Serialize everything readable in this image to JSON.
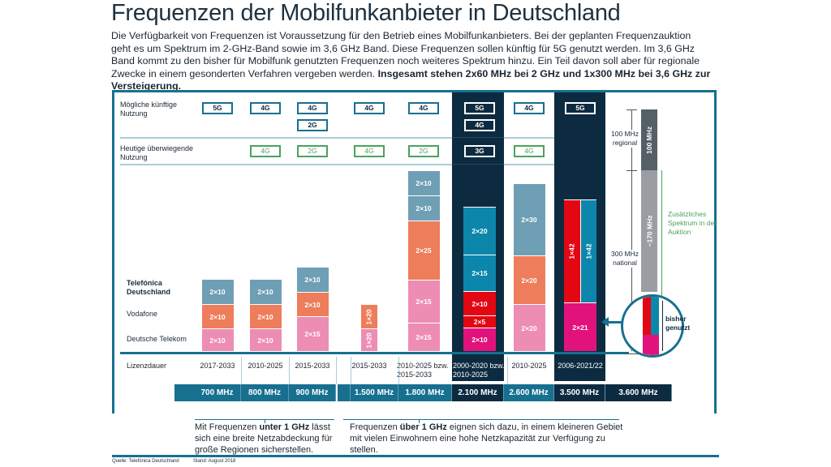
{
  "title": "Frequenzen der Mobilfunkanbieter in Deutschland",
  "intro": {
    "text": "Die Verfügbarkeit von Frequenzen ist Voraussetzung für den Betrieb eines Mobilfunkanbieters. Bei der geplanten Frequenzauktion geht es um Spektrum im 2-GHz-Band sowie im 3,6 GHz Band. Diese Frequenzen sollen künftig für 5G genutzt werden. Im 3,6 GHz Band kommt zu den bisher für Mobilfunk genutzten Frequenzen noch weiteres Spektrum hinzu. Ein Teil davon soll aber für regionale Zwecke in einem gesonderten Verfahren vergeben werden. ",
    "bold": "Insgesamt stehen 2x60 MHz bei 2 GHz und 1x300 MHz bei 3,6 GHz zur Versteigerung."
  },
  "labels": {
    "future": "Mögliche künftige Nutzung",
    "current": "Heutige überwiegende Nutzung",
    "license": "Lizenzdauer"
  },
  "colors": {
    "frame": "#17708f",
    "dark": "#0d2b40",
    "telefonica": "#6f9fb5",
    "vodafone": "#ee7d5b",
    "telekom": "#ee8db3",
    "telefonica_dark": "#0c87ab",
    "vodafone_dark": "#e30613",
    "telekom_dark": "#e2127c",
    "green": "#4aa35e"
  },
  "operators": [
    {
      "id": "telefonica",
      "name": "Telefónica Deutschland",
      "color": "#1a6f8e"
    },
    {
      "id": "vodafone",
      "name": "Vodafone",
      "color": "#e5603a"
    },
    {
      "id": "telekom",
      "name": "Deutsche Telekom",
      "color": "#db5b9c"
    }
  ],
  "chart_data": {
    "type": "bar",
    "stacked": true,
    "columns": [
      {
        "frequency": "700 MHz",
        "license": "2017-2033",
        "future": [
          "5G"
        ],
        "current": [],
        "highlight": false,
        "segments": [
          {
            "op": "telekom",
            "label": "2×10"
          },
          {
            "op": "vodafone",
            "label": "2×10"
          },
          {
            "op": "telefonica",
            "label": "2×10"
          }
        ]
      },
      {
        "frequency": "800 MHz",
        "license": "2010-2025",
        "future": [
          "4G"
        ],
        "current": [
          "4G"
        ],
        "highlight": false,
        "segments": [
          {
            "op": "telekom",
            "label": "2×10"
          },
          {
            "op": "vodafone",
            "label": "2×10"
          },
          {
            "op": "telefonica",
            "label": "2×10"
          }
        ]
      },
      {
        "frequency": "900 MHz",
        "license": "2015-2033",
        "future": [
          "4G",
          "2G"
        ],
        "current": [
          "2G"
        ],
        "highlight": false,
        "segments": [
          {
            "op": "telekom",
            "label": "2×15"
          },
          {
            "op": "vodafone",
            "label": "2×10"
          },
          {
            "op": "telefonica",
            "label": "2×10"
          }
        ]
      },
      {
        "frequency": "1.500 MHz",
        "license": "2015-2033",
        "future": [
          "4G"
        ],
        "current": [
          "4G"
        ],
        "highlight": false,
        "segments": [
          {
            "op": "telekom",
            "label": "1×20"
          },
          {
            "op": "vodafone",
            "label": "1×20"
          }
        ]
      },
      {
        "frequency": "1.800 MHz",
        "license": "2010-2025 bzw.",
        "license2": "2015-2033",
        "future": [
          "4G"
        ],
        "current": [
          "2G"
        ],
        "highlight": false,
        "segments": [
          {
            "op": "telekom",
            "label": "2×15"
          },
          {
            "op": "telekom",
            "label": "2×15"
          },
          {
            "op": "vodafone",
            "label": "2×25"
          },
          {
            "op": "telefonica",
            "label": "2×10"
          },
          {
            "op": "telefonica",
            "label": "2×10"
          }
        ]
      },
      {
        "frequency": "2.100 MHz",
        "license": "2000-2020 bzw.",
        "license2": "2010-2025",
        "future": [
          "5G",
          "4G"
        ],
        "current": [
          "3G"
        ],
        "highlight": true,
        "segments": [
          {
            "op": "telekom",
            "label": "2×10"
          },
          {
            "op": "vodafone",
            "label": "2×5"
          },
          {
            "op": "vodafone",
            "label": "2×10"
          },
          {
            "op": "telefonica",
            "label": "2×15"
          },
          {
            "op": "telefonica",
            "label": "2×20"
          }
        ]
      },
      {
        "frequency": "2.600 MHz",
        "license": "2010-2025",
        "future": [
          "4G"
        ],
        "current": [
          "4G"
        ],
        "highlight": false,
        "segments": [
          {
            "op": "telekom",
            "label": "2×20"
          },
          {
            "op": "vodafone",
            "label": "2×20"
          },
          {
            "op": "telefonica",
            "label": "2×30"
          }
        ]
      },
      {
        "frequency": "3.500 MHz",
        "license": "2006-2021/22",
        "future": [
          "5G"
        ],
        "current": [],
        "highlight": true,
        "segments": [
          {
            "op": "telekom",
            "label": "2×21"
          },
          {
            "op": "vodafone",
            "label": "1×42"
          },
          {
            "op": "telefonica",
            "label": "1×42"
          }
        ]
      },
      {
        "frequency": "3.600 MHz",
        "license": "",
        "future": [],
        "current": [],
        "highlight": true,
        "segments": []
      }
    ],
    "spectrum_3600": {
      "regional": "100 MHz",
      "regional_label": "100 MHz regional",
      "additional": "~170 MHz",
      "national_label": "300 MHz national",
      "additional_label": "Zusätzliches Spektrum in der Auktion",
      "used_label": "bisher genutzt"
    }
  },
  "notes": {
    "below": {
      "pre": "Mit Frequenzen ",
      "bold": "unter 1 GHz",
      "post": " lässt sich eine breite Netzabdeckung für große Regionen sicherstellen."
    },
    "above": {
      "pre": "Frequenzen ",
      "bold": "über 1 GHz",
      "post": " eignen sich dazu, in einem kleineren Gebiet mit vielen Einwohnern eine hohe Netzkapazität zur Verfügung zu stellen."
    }
  },
  "footer": {
    "source": "Quelle: Telefónica Deutschland",
    "date": "Stand: August 2018"
  }
}
